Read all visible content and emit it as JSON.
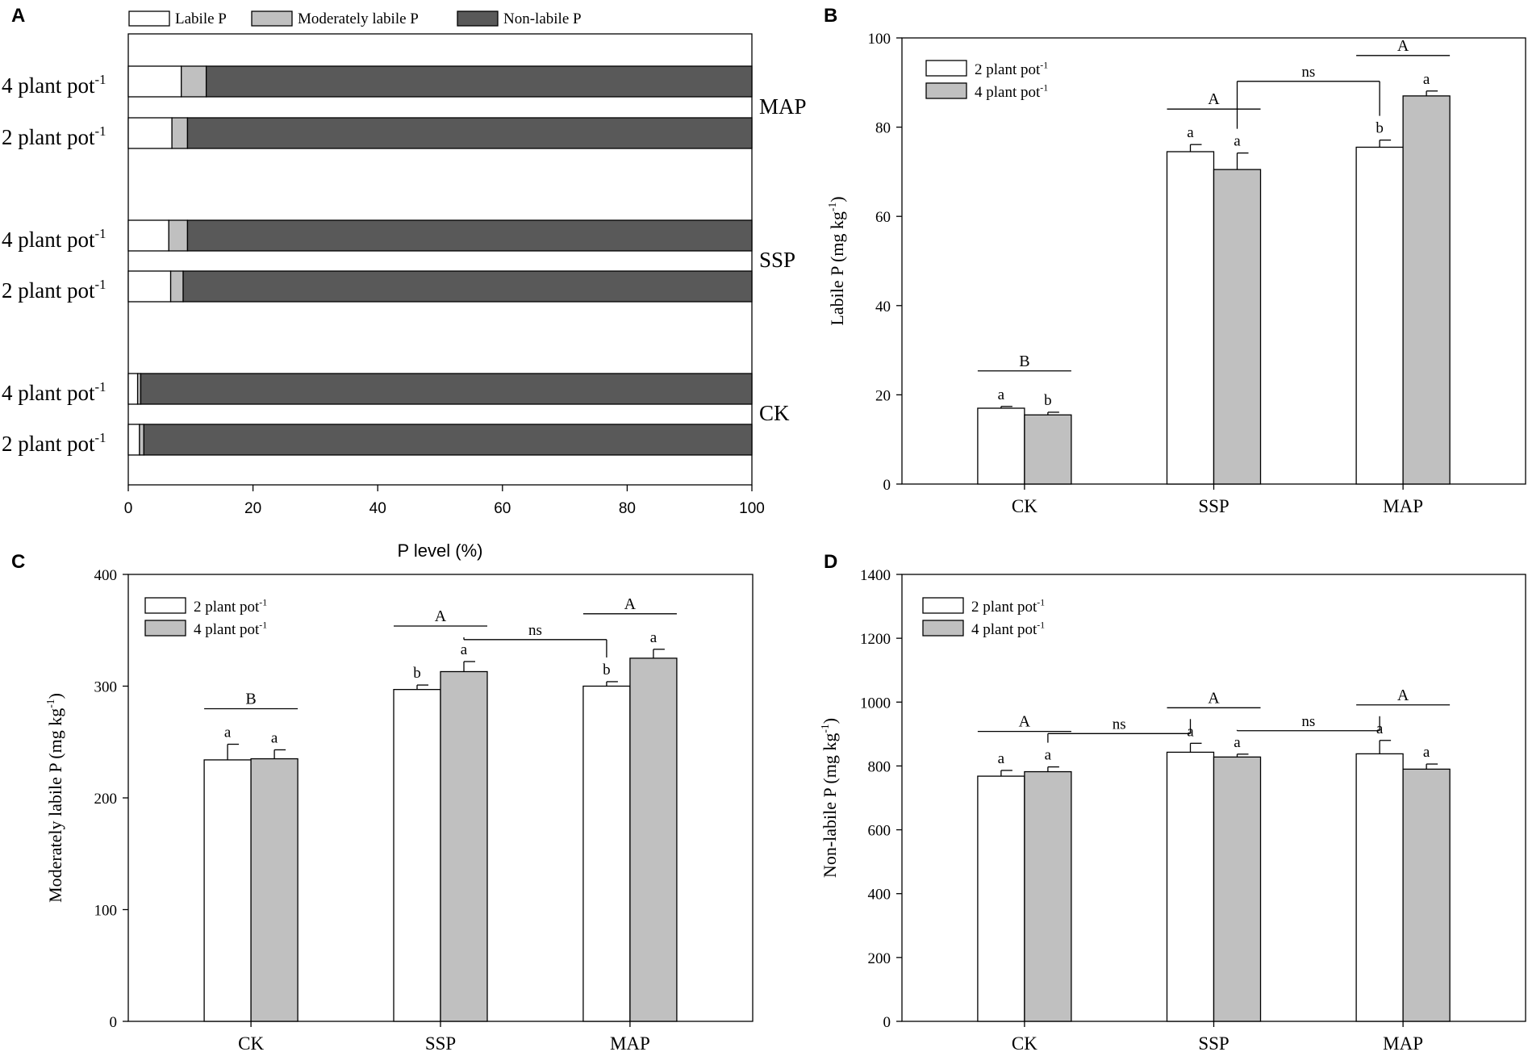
{
  "colors": {
    "labile": "#ffffff",
    "moderate": "#c0c0c0",
    "nonlabile": "#595959",
    "axis": "#000000"
  },
  "chart_data": [
    {
      "panel": "A",
      "type": "bar",
      "orientation": "horizontal",
      "stacked": true,
      "xlabel": "P level (%)",
      "xlim": [
        0,
        100
      ],
      "xticks": [
        "0",
        "20",
        "40",
        "60",
        "80",
        "100"
      ],
      "legend": [
        "Labile P",
        "Moderately labile P",
        "Non-labile  P"
      ],
      "groups": [
        {
          "name": "MAP",
          "rows": [
            {
              "label": "4 plant pot",
              "sup": "-1",
              "labile": 8.5,
              "moderate": 4.0,
              "nonlabile": 87.5
            },
            {
              "label": "2 plant pot",
              "sup": "-1",
              "labile": 7.0,
              "moderate": 2.5,
              "nonlabile": 90.5
            }
          ]
        },
        {
          "name": "SSP",
          "rows": [
            {
              "label": "4 plant pot",
              "sup": "-1",
              "labile": 6.5,
              "moderate": 3.0,
              "nonlabile": 90.5
            },
            {
              "label": "2 plant pot",
              "sup": "-1",
              "labile": 6.8,
              "moderate": 2.0,
              "nonlabile": 91.2
            }
          ]
        },
        {
          "name": "CK",
          "rows": [
            {
              "label": "4 plant pot",
              "sup": "-1",
              "labile": 1.5,
              "moderate": 0.5,
              "nonlabile": 98.0
            },
            {
              "label": "2 plant pot",
              "sup": "-1",
              "labile": 1.8,
              "moderate": 0.7,
              "nonlabile": 97.5
            }
          ]
        }
      ]
    },
    {
      "panel": "B",
      "type": "bar",
      "ylabel": "Labile P (mg kg",
      "ylabel_sup": "-1",
      "ylabel_end": ")",
      "ylim": [
        0,
        100
      ],
      "yticks": [
        "0",
        "20",
        "40",
        "60",
        "80",
        "100"
      ],
      "categories": [
        "CK",
        "SSP",
        "MAP"
      ],
      "legend": [
        "2 plant pot",
        "4 plant pot"
      ],
      "legend_sup": "-1",
      "series": [
        {
          "name": "2 plant pot",
          "values": [
            17,
            74.5,
            75.5
          ],
          "err": [
            0.4,
            1.6,
            1.6
          ],
          "letters": [
            "a",
            "a",
            "b"
          ]
        },
        {
          "name": "4 plant pot",
          "values": [
            15.5,
            70.5,
            87
          ],
          "err": [
            0.6,
            3.7,
            1.1
          ],
          "letters": [
            "b",
            "a",
            "a"
          ]
        }
      ],
      "group_letters": [
        "B",
        "A",
        "A"
      ],
      "ns": [
        {
          "from": 1,
          "to": 2,
          "text": "ns"
        }
      ]
    },
    {
      "panel": "C",
      "type": "bar",
      "ylabel": "Moderately labile P (mg kg",
      "ylabel_sup": "-1",
      "ylabel_end": ")",
      "ylim": [
        0,
        400
      ],
      "yticks": [
        "0",
        "100",
        "200",
        "300",
        "400"
      ],
      "categories": [
        "CK",
        "SSP",
        "MAP"
      ],
      "legend": [
        "2 plant pot",
        "4 plant pot"
      ],
      "legend_sup": "-1",
      "series": [
        {
          "name": "2 plant pot",
          "values": [
            234,
            297,
            300
          ],
          "err": [
            14,
            4,
            4
          ],
          "letters": [
            "a",
            "b",
            "b"
          ]
        },
        {
          "name": "4 plant pot",
          "values": [
            235,
            313,
            325
          ],
          "err": [
            8,
            9,
            8
          ],
          "letters": [
            "a",
            "a",
            "a"
          ]
        }
      ],
      "group_letters": [
        "B",
        "A",
        "A"
      ],
      "ns": [
        {
          "from": 1,
          "to": 2,
          "text": "ns"
        }
      ]
    },
    {
      "panel": "D",
      "type": "bar",
      "ylabel": "Non-labile P (mg kg",
      "ylabel_sup": "-1",
      "ylabel_end": ")",
      "ylim": [
        0,
        1400
      ],
      "yticks": [
        "0",
        "200",
        "400",
        "600",
        "800",
        "1000",
        "1200",
        "1400"
      ],
      "categories": [
        "CK",
        "SSP",
        "MAP"
      ],
      "legend": [
        "2 plant pot",
        "4 plant pot"
      ],
      "legend_sup": "-1",
      "series": [
        {
          "name": "2 plant pot",
          "values": [
            768,
            843,
            838
          ],
          "err": [
            18,
            28,
            42
          ],
          "letters": [
            "a",
            "a",
            "a"
          ]
        },
        {
          "name": "4 plant pot",
          "values": [
            782,
            828,
            790
          ],
          "err": [
            15,
            9,
            16
          ],
          "letters": [
            "a",
            "a",
            "a"
          ]
        }
      ],
      "group_letters": [
        "A",
        "A",
        "A"
      ],
      "ns": [
        {
          "from": 0,
          "to": 1,
          "text": "ns"
        },
        {
          "from": 1,
          "to": 2,
          "text": "ns"
        }
      ]
    }
  ]
}
